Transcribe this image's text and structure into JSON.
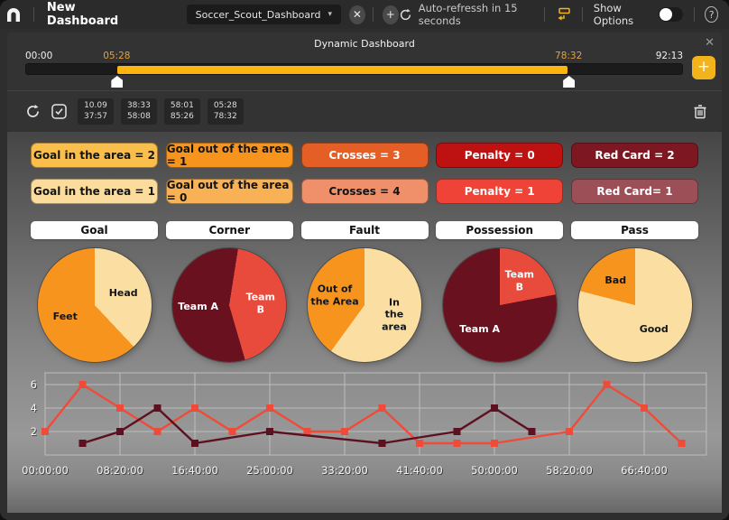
{
  "topbar": {
    "title": "New Dashboard",
    "tab_label": "Soccer_Scout_Dashboard",
    "auto_refresh": "Auto-refressh in 15 seconds",
    "show_options_label": "Show Options",
    "icons": {
      "close": "✕",
      "plus": "+",
      "chevron": "▾",
      "help": "?"
    }
  },
  "panel": {
    "title": "Dynamic Dashboard",
    "close_icon": "✕",
    "timeline": {
      "label_start": "00:00",
      "label_end": "92:13",
      "label_sel_start": "05:28",
      "label_sel_end": "78:32",
      "sel_start_pct": 13.9,
      "sel_end_pct": 82.6,
      "add_label": "+"
    },
    "segments": [
      {
        "line1": "10.09",
        "line2": "37:57"
      },
      {
        "line1": "38:33",
        "line2": "58:08"
      },
      {
        "line1": "58:01",
        "line2": "85:26"
      },
      {
        "line1": "05:28",
        "line2": "78:32"
      }
    ]
  },
  "stat_rows": [
    [
      {
        "label": "Goal in the area = 2",
        "bg": "#F9BE4B",
        "fg": "#141414"
      },
      {
        "label": "Goal out of the area = 1",
        "bg": "#F7941E",
        "fg": "#141414"
      },
      {
        "label": "Crosses = 3",
        "bg": "#E55E26",
        "fg": "#FFFFFF"
      },
      {
        "label": "Penalty = 0",
        "bg": "#BE1212",
        "fg": "#FFFFFF"
      },
      {
        "label": "Red Card = 2",
        "bg": "#7D1823",
        "fg": "#FFFFFF"
      }
    ],
    [
      {
        "label": "Goal in the area = 1",
        "bg": "#FBDC9C",
        "fg": "#141414"
      },
      {
        "label": "Goal out of the area = 0",
        "bg": "#F8B155",
        "fg": "#141414"
      },
      {
        "label": "Crosses = 4",
        "bg": "#F0906B",
        "fg": "#141414"
      },
      {
        "label": "Penalty = 1",
        "bg": "#F04337",
        "fg": "#FFFFFF"
      },
      {
        "label": "Red Card= 1",
        "bg": "#9C4F57",
        "fg": "#FFFFFF"
      }
    ]
  ],
  "categories": [
    "Goal",
    "Corner",
    "Fault",
    "Possession",
    "Pass"
  ],
  "chart_data": [
    {
      "type": "pie",
      "title": "Goal",
      "rotate": 0,
      "slices": [
        {
          "label": "Head",
          "value": 38,
          "color": "#FBDFA2",
          "text": "#141414"
        },
        {
          "label": "Feet",
          "value": 62,
          "color": "#F7941E",
          "text": "#141414"
        }
      ]
    },
    {
      "type": "pie",
      "title": "Corner",
      "rotate": 9,
      "slices": [
        {
          "label": "Team B",
          "value": 43,
          "color": "#E84A3B",
          "text": "#FFFFFF"
        },
        {
          "label": "Team A",
          "value": 57,
          "color": "#6A1120",
          "text": "#FFFFFF"
        }
      ]
    },
    {
      "type": "pie",
      "title": "Fault",
      "rotate": 0,
      "slices": [
        {
          "label": "In the area",
          "value": 60,
          "color": "#FBDFA2",
          "text": "#141414"
        },
        {
          "label": "Out of\nthe Area",
          "value": 40,
          "color": "#F7941E",
          "text": "#141414"
        }
      ]
    },
    {
      "type": "pie",
      "title": "Possession",
      "rotate": 0,
      "slices": [
        {
          "label": "Team B",
          "value": 22,
          "color": "#E84A3B",
          "text": "#FFFFFF"
        },
        {
          "label": "Team A",
          "value": 78,
          "color": "#6A1120",
          "text": "#FFFFFF"
        }
      ]
    },
    {
      "type": "pie",
      "title": "Pass",
      "rotate": 0,
      "slices": [
        {
          "label": "Good",
          "value": 79,
          "color": "#FBDFA2",
          "text": "#141414"
        },
        {
          "label": "Bad",
          "value": 21,
          "color": "#F7941E",
          "text": "#141414"
        }
      ]
    },
    {
      "type": "line",
      "title": "",
      "x_tick_labels": [
        "00:00:00",
        "08:20:00",
        "16:40:00",
        "25:00:00",
        "33:20:00",
        "41:40:00",
        "50:00:00",
        "58:20:00",
        "66:40:00"
      ],
      "x_tick_units": [
        0,
        2,
        4,
        6,
        8,
        10,
        12,
        14,
        16
      ],
      "x_unit_step": "4:10:00",
      "xlim": [
        0,
        17.7
      ],
      "ylim": [
        0,
        7
      ],
      "yticks": [
        2,
        4,
        6
      ],
      "grid": true,
      "legend": "none",
      "series": [
        {
          "name": "red-series",
          "color": "#F04B38",
          "points": [
            [
              0,
              2
            ],
            [
              1,
              6
            ],
            [
              2,
              4
            ],
            [
              3,
              2
            ],
            [
              4,
              4
            ],
            [
              5,
              2
            ],
            [
              6,
              4
            ],
            [
              7,
              2
            ],
            [
              8,
              2
            ],
            [
              9,
              4
            ],
            [
              10,
              1
            ],
            [
              11,
              1
            ],
            [
              12,
              1
            ],
            [
              14,
              2
            ],
            [
              15,
              6
            ],
            [
              16,
              4
            ],
            [
              17,
              1
            ]
          ]
        },
        {
          "name": "dark-red-series",
          "color": "#5C1020",
          "points": [
            [
              1,
              1
            ],
            [
              2,
              2
            ],
            [
              3,
              4
            ],
            [
              4,
              1
            ],
            [
              6,
              2
            ],
            [
              9,
              1
            ],
            [
              11,
              2
            ],
            [
              12,
              4
            ],
            [
              13,
              2
            ]
          ]
        }
      ]
    }
  ],
  "colors": {
    "accent_yellow": "#F2B31C",
    "selection_yellow": "#FDB40E",
    "grid_line": "#BDBDBD",
    "axis_text": "#F4F4F4"
  }
}
